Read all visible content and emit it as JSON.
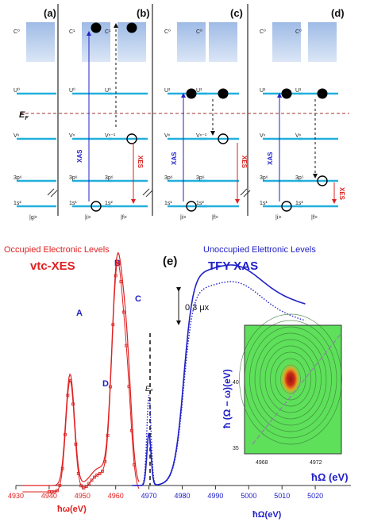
{
  "diagram": {
    "panels": [
      {
        "label": "(a)",
        "columns": [
          {
            "state": "|g>"
          }
        ]
      },
      {
        "label": "(b)",
        "columns": [
          {
            "state": "|i>"
          },
          {
            "state": "|f>"
          }
        ]
      },
      {
        "label": "(c)",
        "columns": [
          {
            "state": "|i>"
          },
          {
            "state": "|f>"
          }
        ]
      },
      {
        "label": "(d)",
        "columns": [
          {
            "state": "|i>"
          },
          {
            "state": "|f>"
          }
        ]
      }
    ],
    "column_levels": [
      {
        "c": "C⁰",
        "u": "U⁰",
        "v": "Vⁿ",
        "p": "3p⁶",
        "s": "1s²"
      },
      {
        "c": "C¹",
        "u": "U⁰",
        "v": "Vⁿ",
        "p": "3p⁶",
        "s": "1s¹"
      },
      {
        "c": "C¹",
        "u": "U⁰",
        "v": "Vⁿ⁻¹",
        "p": "3p⁶",
        "s": "1s²"
      },
      {
        "c": "C⁰",
        "u": "U¹",
        "v": "Vⁿ",
        "p": "3p⁶",
        "s": "1s¹"
      },
      {
        "c": "C⁰",
        "u": "U¹",
        "v": "Vⁿ⁻¹",
        "p": "3p⁶",
        "s": "1s²"
      },
      {
        "c": "C⁰",
        "u": "U¹",
        "v": "Vⁿ",
        "p": "3p⁶",
        "s": "1s¹"
      },
      {
        "c": "C⁰",
        "u": "U¹",
        "v": "Vⁿ",
        "p": "3p⁵",
        "s": "1s²"
      }
    ],
    "fermi_label": "E",
    "fermi_sub": "F",
    "xas_label": "XAS",
    "xes_label": "XES"
  },
  "spectra": {
    "panel_label": "(e)",
    "occupied_title": "Occupied Electronic Levels",
    "unoccupied_title": "Unoccupied Elettronic Levels",
    "xes_title": "vtc-XES",
    "xas_title": "TFY XAS",
    "peaks": [
      "A",
      "B",
      "C",
      "D"
    ],
    "fermi_label": "E",
    "fermi_sub": "F",
    "scale_label": "0.3 μx",
    "x_ticks": [
      "4930",
      "4940",
      "4950",
      "4960",
      "4970",
      "4980",
      "4990",
      "5000",
      "5010",
      "5020"
    ],
    "xlabel_xes": "ħω(eV)",
    "xlabel_xas": "ħΩ(eV)",
    "inset": {
      "x_ticks": [
        "4968",
        "4972"
      ],
      "y_ticks": [
        "40",
        "35"
      ],
      "xlabel": "ħΩ (eV)",
      "ylabel": "ħ (Ω − ω)(eV)",
      "colors": {
        "background": "#5ee05a",
        "core": "#b11a14",
        "ring": "#e8a020"
      }
    },
    "colors": {
      "xes": "#e02020",
      "xas": "#2020c8",
      "level": "#22b0dc",
      "core": "#a8c2e8"
    }
  }
}
